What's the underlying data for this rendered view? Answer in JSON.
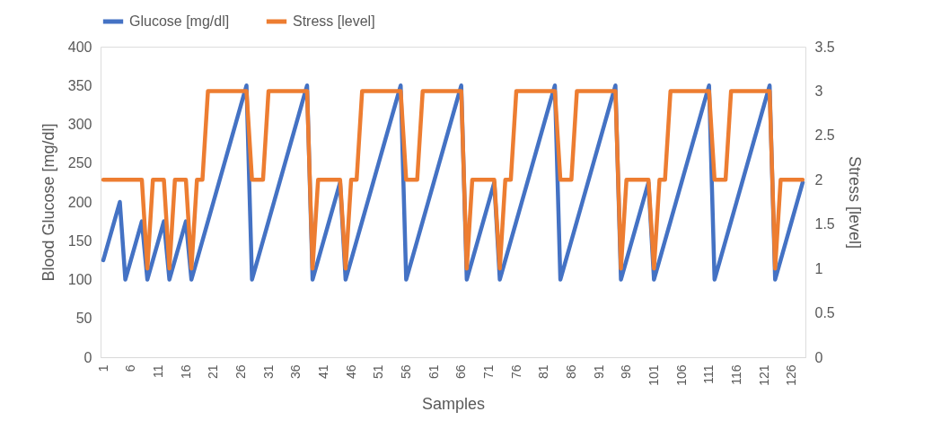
{
  "chart_data": {
    "type": "line",
    "xlabel": "Samples",
    "ylabel": "Blood Glucose [mg/dl]",
    "y2label": "Stress [level]",
    "categories": [
      "1",
      null,
      null,
      null,
      null,
      "6",
      null,
      null,
      null,
      null,
      "11",
      null,
      null,
      null,
      null,
      "16",
      null,
      null,
      null,
      null,
      "21",
      null,
      null,
      null,
      null,
      "26",
      null,
      null,
      null,
      null,
      "31",
      null,
      null,
      null,
      null,
      "36",
      null,
      null,
      null,
      null,
      "41",
      null,
      null,
      null,
      null,
      "46",
      null,
      null,
      null,
      null,
      "51",
      null,
      null,
      null,
      null,
      "56",
      null,
      null,
      null,
      null,
      "61",
      null,
      null,
      null,
      null,
      "66",
      null,
      null,
      null,
      null,
      "71",
      null,
      null,
      null,
      null,
      "76",
      null,
      null,
      null,
      null,
      "81",
      null,
      null,
      null,
      null,
      "86",
      null,
      null,
      null,
      null,
      "91",
      null,
      null,
      null,
      null,
      "96",
      null,
      null,
      null,
      null,
      "101",
      null,
      null,
      null,
      null,
      "106",
      null,
      null,
      null,
      null,
      "111",
      null,
      null,
      null,
      null,
      "116",
      null,
      null,
      null,
      null,
      "121",
      null,
      null,
      null,
      null,
      "126",
      null,
      null
    ],
    "series": [
      {
        "name": "Glucose [mg/dl]",
        "color": "#4472c4",
        "values": [
          125,
          150,
          175,
          200,
          100,
          125,
          150,
          175,
          100,
          125,
          150,
          175,
          100,
          125,
          150,
          175,
          100,
          125,
          150,
          175,
          200,
          225,
          250,
          275,
          300,
          325,
          350,
          100,
          125,
          150,
          175,
          200,
          225,
          250,
          275,
          300,
          325,
          350,
          100,
          125,
          150,
          175,
          200,
          225,
          100,
          125,
          150,
          175,
          200,
          225,
          250,
          275,
          300,
          325,
          350,
          100,
          125,
          150,
          175,
          200,
          225,
          250,
          275,
          300,
          325,
          350,
          100,
          125,
          150,
          175,
          200,
          225,
          100,
          125,
          150,
          175,
          200,
          225,
          250,
          275,
          300,
          325,
          350,
          100,
          125,
          150,
          175,
          200,
          225,
          250,
          275,
          300,
          325,
          350,
          100,
          125,
          150,
          175,
          200,
          225,
          100,
          125,
          150,
          175,
          200,
          225,
          250,
          275,
          300,
          325,
          350,
          100,
          125,
          150,
          175,
          200,
          225,
          250,
          275,
          300,
          325,
          350,
          100,
          125,
          150,
          175,
          200,
          225
        ]
      },
      {
        "name": "Stress [level]",
        "color": "#ed7d31",
        "axis": "y2",
        "values": [
          2,
          2,
          2,
          2,
          2,
          2,
          2,
          2,
          1,
          2,
          2,
          2,
          1,
          2,
          2,
          2,
          1,
          2,
          2,
          3,
          3,
          3,
          3,
          3,
          3,
          3,
          3,
          2,
          2,
          2,
          3,
          3,
          3,
          3,
          3,
          3,
          3,
          3,
          1,
          2,
          2,
          2,
          2,
          2,
          1,
          2,
          2,
          3,
          3,
          3,
          3,
          3,
          3,
          3,
          3,
          2,
          2,
          2,
          3,
          3,
          3,
          3,
          3,
          3,
          3,
          3,
          1,
          2,
          2,
          2,
          2,
          2,
          1,
          2,
          2,
          3,
          3,
          3,
          3,
          3,
          3,
          3,
          3,
          2,
          2,
          2,
          3,
          3,
          3,
          3,
          3,
          3,
          3,
          3,
          1,
          2,
          2,
          2,
          2,
          2,
          1,
          2,
          2,
          3,
          3,
          3,
          3,
          3,
          3,
          3,
          3,
          2,
          2,
          2,
          3,
          3,
          3,
          3,
          3,
          3,
          3,
          3,
          1,
          2,
          2,
          2,
          2,
          2
        ]
      }
    ],
    "ylim": [
      0,
      400
    ],
    "yticks": [
      0,
      50,
      100,
      150,
      200,
      250,
      300,
      350,
      400
    ],
    "y2lim": [
      0,
      3.5
    ],
    "y2ticks": [
      0,
      0.5,
      1,
      1.5,
      2,
      2.5,
      3,
      3.5
    ],
    "grid": false,
    "legend": "top",
    "line_style": "solid"
  }
}
